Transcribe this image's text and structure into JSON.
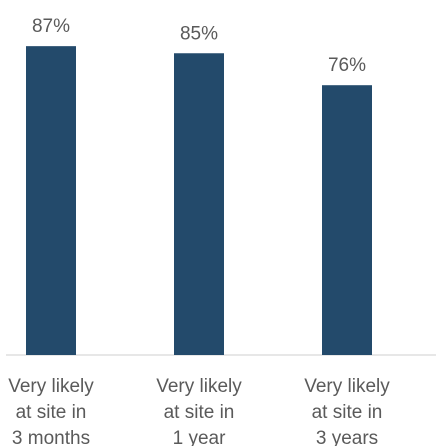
{
  "chart_data": {
    "type": "bar",
    "categories": [
      [
        "Very likely",
        "at site in",
        "3 months"
      ],
      [
        "Very likely",
        "at site in",
        "1 year"
      ],
      [
        "Very likely",
        "at site in",
        "3 years"
      ]
    ],
    "values": [
      87,
      85,
      76
    ],
    "value_labels": [
      "87%",
      "85%",
      "76%"
    ],
    "ylim": [
      0,
      100
    ],
    "title": "",
    "xlabel": "",
    "ylabel": "",
    "grid": false,
    "colors": {
      "bar": "#234a6b",
      "text": "#5a5a5a",
      "baseline": "#cfcfcf"
    }
  }
}
